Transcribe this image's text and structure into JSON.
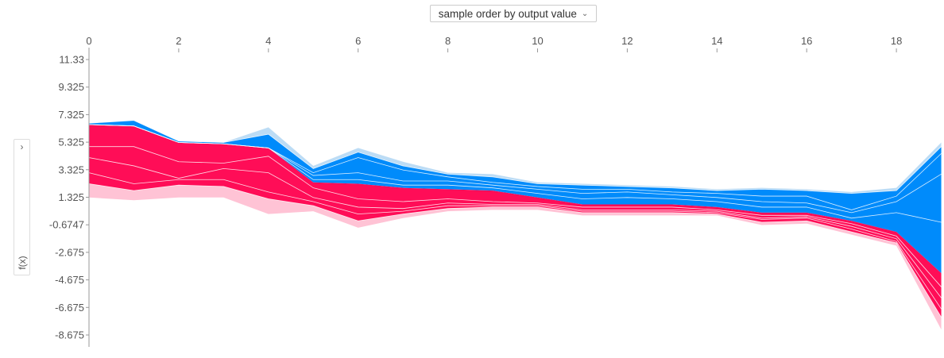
{
  "controls": {
    "order_select_label": "sample order by output value",
    "ylabel_chevron": "›",
    "ylabel": "f(x)"
  },
  "colors": {
    "positive": "#ff0d57",
    "negative": "#008bfb",
    "positive_light": "#ffc3d5",
    "negative_light": "#bcdcf5"
  },
  "chart_data": {
    "type": "area",
    "title": "",
    "xlabel": "",
    "ylabel": "f(x)",
    "x_ticks": [
      "0",
      "2",
      "4",
      "6",
      "8",
      "10",
      "12",
      "14",
      "16",
      "18"
    ],
    "y_ticks": [
      "11.33",
      "9.325",
      "7.325",
      "5.325",
      "3.325",
      "1.325",
      "-0.6747",
      "-2.675",
      "-4.675",
      "-6.675",
      "-8.675"
    ],
    "x": [
      0,
      1,
      2,
      3,
      4,
      5,
      6,
      7,
      8,
      9,
      10,
      11,
      12,
      13,
      14,
      15,
      16,
      17,
      18,
      19
    ],
    "xlim": [
      0,
      19
    ],
    "ylim": [
      -9.7,
      12.3
    ],
    "output_value": [
      6.6,
      6.5,
      5.3,
      5.2,
      4.9,
      2.4,
      2.3,
      2.0,
      1.9,
      1.8,
      1.3,
      0.8,
      0.8,
      0.8,
      0.6,
      0.2,
      0.2,
      -0.4,
      -1.2,
      -4.2
    ],
    "top_edge": [
      6.7,
      6.9,
      5.4,
      5.3,
      6.4,
      3.6,
      4.9,
      3.9,
      3.1,
      3.0,
      2.4,
      2.3,
      2.2,
      2.1,
      1.9,
      2.0,
      1.9,
      1.7,
      2.0,
      5.3
    ],
    "bottom_edge": [
      1.3,
      1.1,
      1.3,
      1.3,
      0.1,
      0.3,
      -0.9,
      -0.2,
      0.3,
      0.4,
      0.4,
      0.0,
      0.0,
      0.0,
      0.0,
      -0.7,
      -0.6,
      -1.4,
      -2.2,
      -8.3
    ],
    "negative_inner_lines": [
      [
        6.7,
        6.9,
        5.4,
        5.3,
        5.9,
        3.4,
        4.6,
        3.6,
        3.0,
        2.8,
        2.3,
        2.2,
        2.1,
        2.0,
        1.8,
        1.9,
        1.8,
        1.6,
        1.8,
        5.0
      ],
      [
        6.6,
        6.5,
        5.3,
        5.2,
        4.9,
        3.1,
        4.2,
        3.3,
        2.8,
        2.4,
        2.1,
        1.9,
        1.9,
        1.7,
        1.6,
        1.4,
        1.4,
        0.4,
        1.4,
        4.5
      ],
      [
        6.6,
        6.5,
        5.3,
        5.2,
        4.9,
        2.9,
        3.1,
        2.5,
        2.5,
        2.2,
        1.9,
        1.6,
        1.7,
        1.5,
        1.3,
        1.0,
        0.9,
        0.2,
        1.0,
        3.0
      ],
      [
        6.6,
        6.5,
        5.3,
        5.2,
        4.9,
        2.6,
        2.6,
        2.2,
        2.2,
        2.0,
        1.6,
        1.2,
        1.3,
        1.2,
        1.0,
        0.6,
        0.6,
        -0.2,
        0.2,
        -0.5
      ]
    ],
    "positive_inner_lines": [
      [
        5.0,
        5.0,
        3.9,
        3.8,
        4.3,
        2.0,
        1.2,
        1.0,
        1.2,
        1.0,
        0.9,
        0.6,
        0.6,
        0.6,
        0.4,
        0.0,
        0.0,
        -0.6,
        -1.5,
        -5.2
      ],
      [
        4.2,
        3.6,
        2.7,
        3.4,
        3.1,
        1.3,
        0.6,
        0.5,
        0.9,
        0.8,
        0.8,
        0.4,
        0.4,
        0.4,
        0.3,
        -0.2,
        -0.1,
        -0.8,
        -1.7,
        -6.0
      ],
      [
        3.1,
        2.3,
        2.6,
        2.6,
        1.7,
        1.0,
        0.1,
        0.3,
        0.7,
        0.7,
        0.7,
        0.3,
        0.3,
        0.3,
        0.2,
        -0.3,
        -0.2,
        -1.0,
        -1.9,
        -6.8
      ],
      [
        2.3,
        1.8,
        2.2,
        2.1,
        1.2,
        0.7,
        -0.4,
        0.1,
        0.5,
        0.6,
        0.6,
        0.2,
        0.2,
        0.2,
        0.1,
        -0.5,
        -0.4,
        -1.2,
        -2.0,
        -7.4
      ]
    ]
  }
}
